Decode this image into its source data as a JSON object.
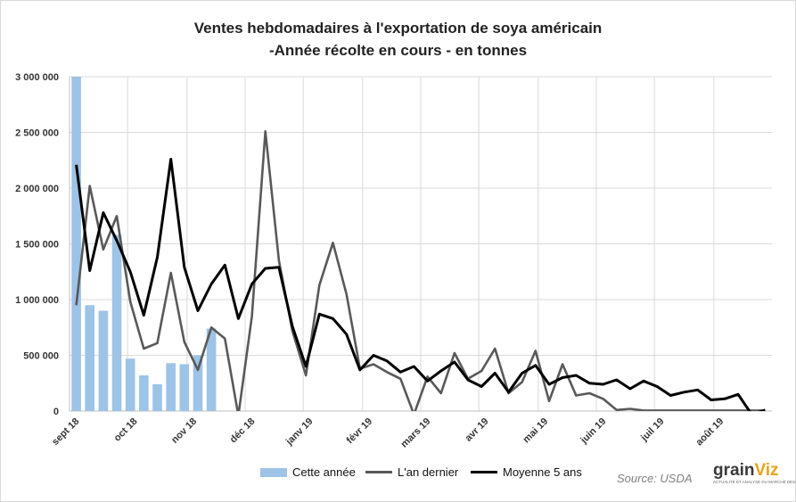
{
  "chart_data": {
    "type": "bar+line",
    "title_line1": "Ventes hebdomadaires à l'exportation de soya américain",
    "title_line2": "-Année récolte en cours - en tonnes",
    "ylim": [
      0,
      3000000
    ],
    "y_ticks": [
      "0",
      "500 000",
      "1 000 000",
      "1 500 000",
      "2 000 000",
      "2 500 000",
      "3 000 000"
    ],
    "y_tick_values": [
      0,
      500000,
      1000000,
      1500000,
      2000000,
      2500000,
      3000000
    ],
    "x_month_labels": [
      "sept 18",
      "oct 18",
      "nov 18",
      "déc 18",
      "janv 19",
      "févr 19",
      "mars 19",
      "avr 19",
      "mai 19",
      "juin 19",
      "juil 19",
      "août 19"
    ],
    "x_month_week_index": [
      0,
      4.3,
      8.7,
      13,
      17.3,
      21.7,
      26,
      30.3,
      34.7,
      39,
      43.3,
      47.7
    ],
    "week_count": 52,
    "grid": true,
    "legend_position": "bottom",
    "series": [
      {
        "name": "Cette année",
        "kind": "bar",
        "color": "#9dc3e6",
        "values": [
          3000000,
          950000,
          900000,
          1580000,
          470000,
          320000,
          240000,
          430000,
          420000,
          500000,
          740000
        ]
      },
      {
        "name": "L'an dernier",
        "kind": "line",
        "color": "#595959",
        "values": [
          950000,
          2020000,
          1450000,
          1750000,
          980000,
          560000,
          610000,
          1240000,
          620000,
          370000,
          750000,
          650000,
          -40000,
          850000,
          2510000,
          1350000,
          720000,
          320000,
          1130000,
          1510000,
          1050000,
          380000,
          420000,
          350000,
          290000,
          -30000,
          310000,
          160000,
          520000,
          290000,
          360000,
          560000,
          160000,
          260000,
          540000,
          90000,
          420000,
          140000,
          160000,
          110000,
          10000,
          20000,
          5000,
          5000,
          5000,
          5000,
          5000,
          5000,
          5000,
          5000,
          5000,
          5000
        ]
      },
      {
        "name": "Moyenne 5 ans",
        "kind": "line",
        "color": "#000000",
        "values": [
          2210000,
          1260000,
          1780000,
          1530000,
          1250000,
          860000,
          1380000,
          2260000,
          1290000,
          900000,
          1140000,
          1310000,
          830000,
          1140000,
          1280000,
          1290000,
          760000,
          400000,
          870000,
          830000,
          690000,
          370000,
          500000,
          450000,
          350000,
          400000,
          270000,
          360000,
          440000,
          280000,
          220000,
          340000,
          170000,
          340000,
          410000,
          240000,
          300000,
          320000,
          250000,
          240000,
          280000,
          200000,
          270000,
          220000,
          140000,
          170000,
          190000,
          100000,
          110000,
          150000,
          -30000,
          10000
        ]
      }
    ]
  },
  "legend": {
    "this_year": "Cette année",
    "last_year": "L'an dernier",
    "avg": "Moyenne 5 ans"
  },
  "source": "Source:  USDA",
  "logo": {
    "part1": "grain",
    "part2": "Viz",
    "tagline": "ACTUALITÉ ET ANALYSE DU MARCHÉ DES GRAINS"
  }
}
